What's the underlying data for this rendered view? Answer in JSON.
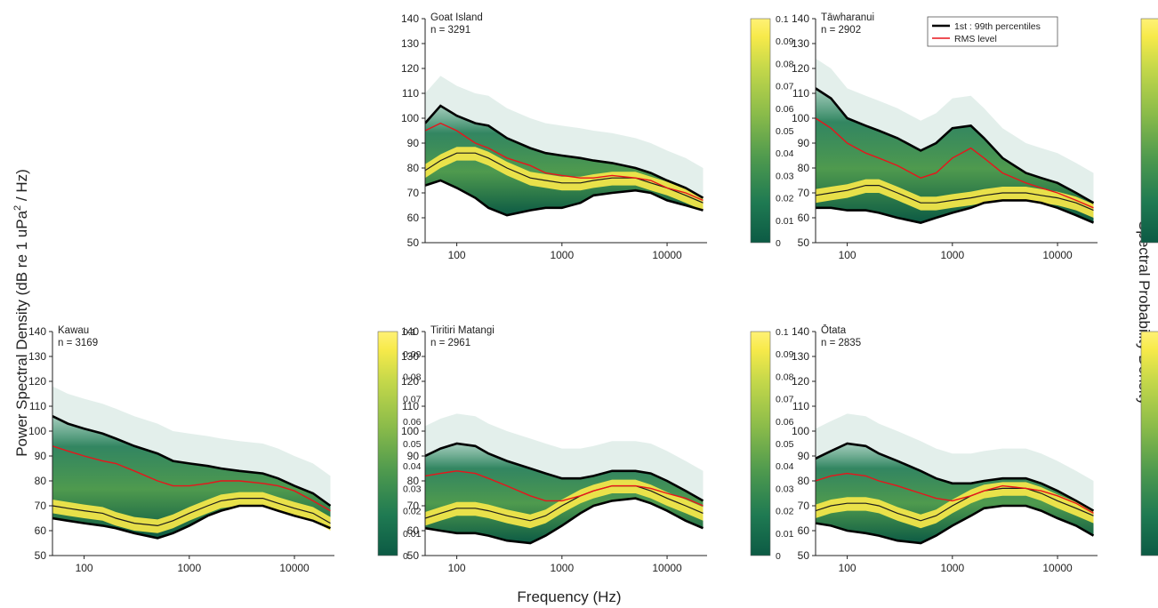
{
  "figure": {
    "ylabel_main": "Power Spectral Density (dB re 1 uPa",
    "ylabel_sup": "2",
    "ylabel_tail": " / Hz)",
    "xlabel": "Frequency (Hz)",
    "right_label": "Spectral Probability Density"
  },
  "legend": {
    "percentile_label": "1st : 99th percentiles",
    "rms_label": "RMS level",
    "percentile_color": "#000000",
    "rms_color": "#e8141b"
  },
  "colorscale": {
    "stops": [
      "#0c5a44",
      "#1f7a52",
      "#4f9a4e",
      "#8cbc4a",
      "#c5d84a",
      "#f7ea4a",
      "#fff176"
    ],
    "ticks": [
      "0",
      "0.01",
      "0.02",
      "0.03",
      "0.04",
      "0.05",
      "0.06",
      "0.07",
      "0.08",
      "0.09",
      "0.1"
    ]
  },
  "chart_data": [
    {
      "type": "area",
      "site": "Goat Island",
      "n_label": "n = 3291",
      "xlim": [
        50,
        24000
      ],
      "ylim": [
        50,
        140
      ],
      "x_scale": "log",
      "yticks": [
        "50",
        "60",
        "70",
        "80",
        "90",
        "100",
        "110",
        "120",
        "130",
        "140"
      ],
      "xticks": [
        "100",
        "1000",
        "10000"
      ],
      "colorbar_range": [
        0,
        0.1
      ],
      "legend": false,
      "x": [
        50,
        70,
        100,
        150,
        200,
        300,
        500,
        700,
        1000,
        1500,
        2000,
        3000,
        5000,
        7000,
        10000,
        15000,
        22000
      ],
      "p99": [
        98,
        105,
        101,
        98,
        97,
        92,
        88,
        86,
        85,
        84,
        83,
        82,
        80,
        78,
        75,
        72,
        68
      ],
      "p50": [
        79,
        83,
        86,
        86,
        84,
        80,
        76,
        75,
        74,
        74,
        75,
        76,
        76,
        74,
        72,
        69,
        66
      ],
      "p01": [
        73,
        75,
        72,
        68,
        64,
        61,
        63,
        64,
        64,
        66,
        69,
        70,
        71,
        70,
        67,
        65,
        63
      ],
      "rms": [
        95,
        98,
        95,
        90,
        88,
        84,
        81,
        78,
        77,
        76,
        76,
        77,
        76,
        75,
        72,
        70,
        67
      ]
    },
    {
      "type": "area",
      "site": "Tāwharanui",
      "n_label": "n = 2902",
      "xlim": [
        50,
        24000
      ],
      "ylim": [
        50,
        140
      ],
      "x_scale": "log",
      "yticks": [
        "50",
        "60",
        "70",
        "80",
        "90",
        "100",
        "110",
        "120",
        "130",
        "140"
      ],
      "xticks": [
        "100",
        "1000",
        "10000"
      ],
      "colorbar_range": [
        0,
        0.1
      ],
      "legend": true,
      "x": [
        50,
        70,
        100,
        150,
        200,
        300,
        500,
        700,
        1000,
        1500,
        2000,
        3000,
        5000,
        7000,
        10000,
        15000,
        22000
      ],
      "p99": [
        112,
        108,
        100,
        97,
        95,
        92,
        87,
        90,
        96,
        97,
        92,
        84,
        78,
        76,
        74,
        70,
        66
      ],
      "p50": [
        69,
        70,
        71,
        73,
        73,
        70,
        66,
        66,
        67,
        68,
        69,
        70,
        70,
        69,
        68,
        66,
        63
      ],
      "p01": [
        64,
        64,
        63,
        63,
        62,
        60,
        58,
        60,
        62,
        64,
        66,
        67,
        67,
        66,
        64,
        61,
        58
      ],
      "rms": [
        100,
        96,
        90,
        86,
        84,
        81,
        76,
        78,
        84,
        88,
        84,
        78,
        74,
        72,
        70,
        67,
        64
      ]
    },
    {
      "type": "area",
      "site": "Kawau",
      "n_label": "n = 3169",
      "xlim": [
        50,
        24000
      ],
      "ylim": [
        50,
        140
      ],
      "x_scale": "log",
      "yticks": [
        "50",
        "60",
        "70",
        "80",
        "90",
        "100",
        "110",
        "120",
        "130",
        "140"
      ],
      "xticks": [
        "100",
        "1000",
        "10000"
      ],
      "colorbar_range": [
        0,
        0.1
      ],
      "legend": false,
      "x": [
        50,
        70,
        100,
        150,
        200,
        300,
        500,
        700,
        1000,
        1500,
        2000,
        3000,
        5000,
        7000,
        10000,
        15000,
        22000
      ],
      "p99": [
        106,
        103,
        101,
        99,
        97,
        94,
        91,
        88,
        87,
        86,
        85,
        84,
        83,
        81,
        78,
        75,
        70
      ],
      "p50": [
        70,
        69,
        68,
        67,
        65,
        63,
        62,
        64,
        67,
        70,
        72,
        73,
        73,
        71,
        69,
        67,
        63
      ],
      "p01": [
        65,
        64,
        63,
        62,
        61,
        59,
        57,
        59,
        62,
        66,
        68,
        70,
        70,
        68,
        66,
        64,
        61
      ],
      "rms": [
        94,
        92,
        90,
        88,
        87,
        84,
        80,
        78,
        78,
        79,
        80,
        80,
        79,
        78,
        76,
        72,
        68
      ]
    },
    {
      "type": "area",
      "site": "Tiritiri Matangi",
      "n_label": "n = 2961",
      "xlim": [
        50,
        24000
      ],
      "ylim": [
        50,
        140
      ],
      "x_scale": "log",
      "yticks": [
        "50",
        "60",
        "70",
        "80",
        "90",
        "100",
        "110",
        "120",
        "130",
        "140"
      ],
      "xticks": [
        "100",
        "1000",
        "10000"
      ],
      "colorbar_range": [
        0,
        0.1
      ],
      "legend": false,
      "x": [
        50,
        70,
        100,
        150,
        200,
        300,
        500,
        700,
        1000,
        1500,
        2000,
        3000,
        5000,
        7000,
        10000,
        15000,
        22000
      ],
      "p99": [
        90,
        93,
        95,
        94,
        91,
        88,
        85,
        83,
        81,
        81,
        82,
        84,
        84,
        83,
        80,
        76,
        72
      ],
      "p50": [
        65,
        67,
        69,
        69,
        68,
        66,
        64,
        66,
        70,
        74,
        76,
        78,
        78,
        76,
        73,
        70,
        67
      ],
      "p01": [
        61,
        60,
        59,
        59,
        58,
        56,
        55,
        58,
        62,
        67,
        70,
        72,
        73,
        71,
        68,
        64,
        61
      ],
      "rms": [
        82,
        83,
        84,
        83,
        81,
        78,
        74,
        72,
        72,
        74,
        76,
        78,
        78,
        77,
        75,
        73,
        70
      ]
    },
    {
      "type": "area",
      "site": "Ōtata",
      "n_label": "n = 2835",
      "xlim": [
        50,
        24000
      ],
      "ylim": [
        50,
        140
      ],
      "x_scale": "log",
      "yticks": [
        "50",
        "60",
        "70",
        "80",
        "90",
        "100",
        "110",
        "120",
        "130",
        "140"
      ],
      "xticks": [
        "100",
        "1000",
        "10000"
      ],
      "colorbar_range": [
        0,
        0.1
      ],
      "legend": false,
      "x": [
        50,
        70,
        100,
        150,
        200,
        300,
        500,
        700,
        1000,
        1500,
        2000,
        3000,
        5000,
        7000,
        10000,
        15000,
        22000
      ],
      "p99": [
        89,
        92,
        95,
        94,
        91,
        88,
        84,
        81,
        79,
        79,
        80,
        81,
        81,
        79,
        76,
        72,
        68
      ],
      "p50": [
        68,
        70,
        71,
        71,
        70,
        67,
        64,
        66,
        70,
        74,
        76,
        77,
        77,
        75,
        72,
        69,
        66
      ],
      "p01": [
        63,
        62,
        60,
        59,
        58,
        56,
        55,
        58,
        62,
        66,
        69,
        70,
        70,
        68,
        65,
        62,
        58
      ],
      "rms": [
        80,
        82,
        83,
        82,
        80,
        78,
        75,
        73,
        72,
        74,
        76,
        78,
        77,
        76,
        74,
        71,
        67
      ]
    }
  ]
}
